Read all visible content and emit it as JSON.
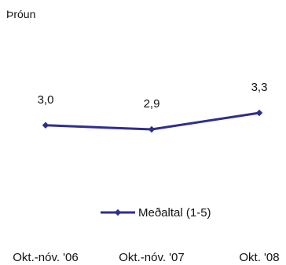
{
  "chart_data": {
    "type": "line",
    "title": "Þróun",
    "categories": [
      "Okt.-nóv. '06",
      "Okt.-nóv. '07",
      "Okt. '08"
    ],
    "series": [
      {
        "name": "Meðaltal (1-5)",
        "values": [
          3.0,
          2.9,
          3.3
        ],
        "labels": [
          "3,0",
          "2,9",
          "3,3"
        ],
        "color": "#2e2e8f"
      }
    ],
    "ylim": [
      1,
      5
    ],
    "grid": false,
    "legend": "bottom"
  }
}
